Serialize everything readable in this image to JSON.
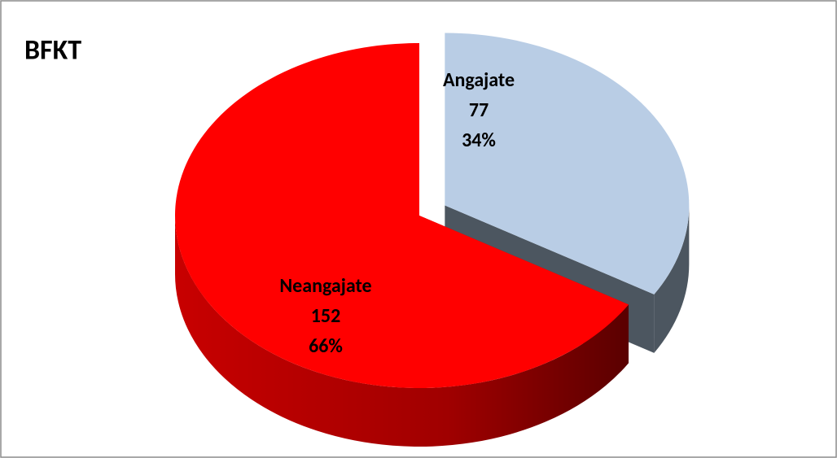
{
  "chart_data": {
    "type": "pie3d",
    "title": "BFKT",
    "categories": [
      "Angajate",
      "Neangajate"
    ],
    "values": [
      77,
      152
    ],
    "shares": [
      34,
      66
    ],
    "share_labels": [
      "34%",
      "66%"
    ],
    "colors": [
      "#b9cde5",
      "#ff0000"
    ],
    "side_colors": [
      "#4c5660",
      "#9a0000"
    ]
  }
}
